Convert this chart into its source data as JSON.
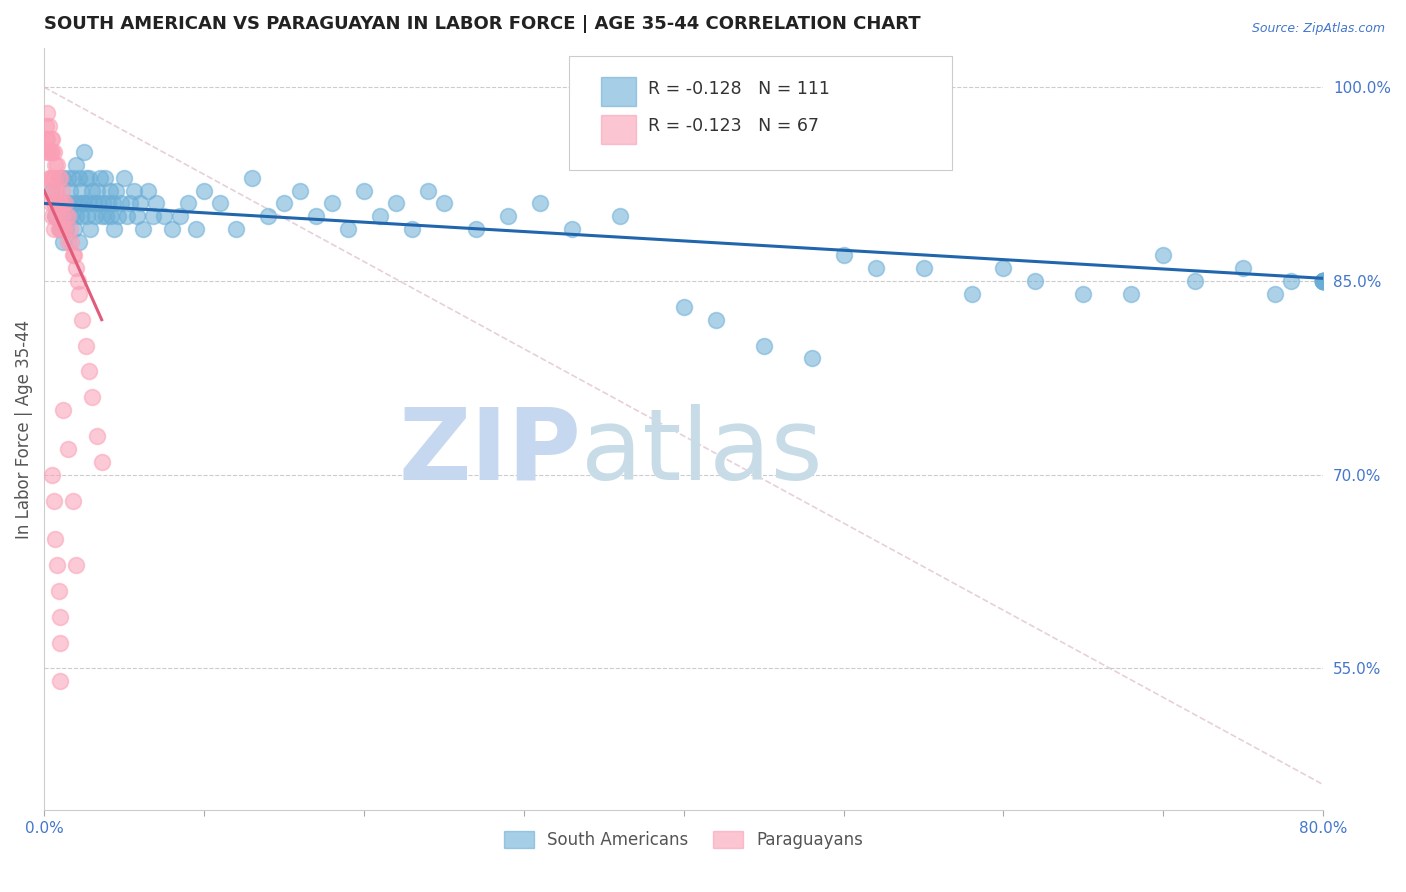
{
  "title": "SOUTH AMERICAN VS PARAGUAYAN IN LABOR FORCE | AGE 35-44 CORRELATION CHART",
  "source": "Source: ZipAtlas.com",
  "ylabel": "In Labor Force | Age 35-44",
  "xlim": [
    0.0,
    0.8
  ],
  "ylim": [
    0.44,
    1.03
  ],
  "xticks": [
    0.0,
    0.1,
    0.2,
    0.3,
    0.4,
    0.5,
    0.6,
    0.7,
    0.8
  ],
  "xticklabels": [
    "0.0%",
    "",
    "",
    "",
    "",
    "",
    "",
    "",
    "80.0%"
  ],
  "right_yticks": [
    1.0,
    0.85,
    0.7,
    0.55
  ],
  "right_yticklabels": [
    "100.0%",
    "85.0%",
    "70.0%",
    "55.0%"
  ],
  "legend_blue_r": "R = -0.128",
  "legend_blue_n": "N = 111",
  "legend_pink_r": "R = -0.123",
  "legend_pink_n": "N = 67",
  "legend_labels": [
    "South Americans",
    "Paraguayans"
  ],
  "blue_color": "#6baed6",
  "pink_color": "#fa9fb5",
  "trend_blue_color": "#2166ac",
  "trend_pink_color": "#e05c7a",
  "watermark1": "ZIP",
  "watermark2": "atlas",
  "watermark_color1": "#c6d8f0",
  "watermark_color2": "#c8dce8",
  "grid_color": "#cccccc",
  "axis_label_color": "#4477cc",
  "title_color": "#222222",
  "blue_scatter_x": [
    0.005,
    0.007,
    0.009,
    0.01,
    0.01,
    0.011,
    0.012,
    0.012,
    0.013,
    0.014,
    0.015,
    0.015,
    0.016,
    0.017,
    0.018,
    0.018,
    0.019,
    0.02,
    0.02,
    0.021,
    0.022,
    0.022,
    0.023,
    0.023,
    0.024,
    0.025,
    0.025,
    0.026,
    0.027,
    0.028,
    0.028,
    0.029,
    0.03,
    0.031,
    0.032,
    0.033,
    0.034,
    0.035,
    0.036,
    0.037,
    0.038,
    0.039,
    0.04,
    0.041,
    0.042,
    0.043,
    0.044,
    0.045,
    0.046,
    0.048,
    0.05,
    0.052,
    0.054,
    0.056,
    0.058,
    0.06,
    0.062,
    0.065,
    0.068,
    0.07,
    0.075,
    0.08,
    0.085,
    0.09,
    0.095,
    0.1,
    0.11,
    0.12,
    0.13,
    0.14,
    0.15,
    0.16,
    0.17,
    0.18,
    0.19,
    0.2,
    0.21,
    0.22,
    0.23,
    0.24,
    0.25,
    0.27,
    0.29,
    0.31,
    0.33,
    0.36,
    0.4,
    0.42,
    0.45,
    0.48,
    0.5,
    0.52,
    0.55,
    0.58,
    0.6,
    0.62,
    0.65,
    0.68,
    0.7,
    0.72,
    0.75,
    0.77,
    0.78,
    0.8,
    0.8,
    0.8,
    0.8,
    0.8,
    0.8,
    0.8,
    0.8
  ],
  "blue_scatter_y": [
    0.92,
    0.9,
    0.91,
    0.93,
    0.89,
    0.91,
    0.93,
    0.88,
    0.9,
    0.89,
    0.93,
    0.91,
    0.92,
    0.9,
    0.93,
    0.91,
    0.89,
    0.94,
    0.9,
    0.91,
    0.93,
    0.88,
    0.92,
    0.9,
    0.91,
    0.95,
    0.91,
    0.93,
    0.9,
    0.93,
    0.91,
    0.89,
    0.92,
    0.91,
    0.9,
    0.92,
    0.91,
    0.93,
    0.9,
    0.91,
    0.93,
    0.9,
    0.91,
    0.92,
    0.9,
    0.91,
    0.89,
    0.92,
    0.9,
    0.91,
    0.93,
    0.9,
    0.91,
    0.92,
    0.9,
    0.91,
    0.89,
    0.92,
    0.9,
    0.91,
    0.9,
    0.89,
    0.9,
    0.91,
    0.89,
    0.92,
    0.91,
    0.89,
    0.93,
    0.9,
    0.91,
    0.92,
    0.9,
    0.91,
    0.89,
    0.92,
    0.9,
    0.91,
    0.89,
    0.92,
    0.91,
    0.89,
    0.9,
    0.91,
    0.89,
    0.9,
    0.83,
    0.82,
    0.8,
    0.79,
    0.87,
    0.86,
    0.86,
    0.84,
    0.86,
    0.85,
    0.84,
    0.84,
    0.87,
    0.85,
    0.86,
    0.84,
    0.85,
    0.85,
    0.85,
    0.85,
    0.85,
    0.85,
    0.85,
    0.85,
    0.85
  ],
  "blue_trend_x": [
    0.0,
    0.8
  ],
  "blue_trend_y": [
    0.91,
    0.852
  ],
  "pink_scatter_x": [
    0.001,
    0.001,
    0.002,
    0.002,
    0.002,
    0.003,
    0.003,
    0.003,
    0.003,
    0.004,
    0.004,
    0.004,
    0.004,
    0.005,
    0.005,
    0.005,
    0.005,
    0.006,
    0.006,
    0.006,
    0.006,
    0.007,
    0.007,
    0.007,
    0.008,
    0.008,
    0.008,
    0.009,
    0.009,
    0.009,
    0.01,
    0.01,
    0.01,
    0.011,
    0.011,
    0.012,
    0.012,
    0.013,
    0.013,
    0.014,
    0.015,
    0.015,
    0.016,
    0.017,
    0.018,
    0.019,
    0.02,
    0.021,
    0.022,
    0.024,
    0.026,
    0.028,
    0.03,
    0.033,
    0.036,
    0.005,
    0.006,
    0.007,
    0.008,
    0.009,
    0.01,
    0.01,
    0.01,
    0.012,
    0.015,
    0.018,
    0.02
  ],
  "pink_scatter_y": [
    0.97,
    0.96,
    0.98,
    0.96,
    0.95,
    0.97,
    0.95,
    0.93,
    0.92,
    0.96,
    0.95,
    0.93,
    0.91,
    0.96,
    0.95,
    0.93,
    0.9,
    0.95,
    0.93,
    0.91,
    0.89,
    0.94,
    0.92,
    0.9,
    0.94,
    0.92,
    0.9,
    0.93,
    0.91,
    0.89,
    0.93,
    0.91,
    0.89,
    0.92,
    0.9,
    0.91,
    0.89,
    0.91,
    0.89,
    0.9,
    0.9,
    0.88,
    0.89,
    0.88,
    0.87,
    0.87,
    0.86,
    0.85,
    0.84,
    0.82,
    0.8,
    0.78,
    0.76,
    0.73,
    0.71,
    0.7,
    0.68,
    0.65,
    0.63,
    0.61,
    0.59,
    0.57,
    0.54,
    0.75,
    0.72,
    0.68,
    0.63
  ],
  "pink_trend_x": [
    0.0,
    0.036
  ],
  "pink_trend_y": [
    0.92,
    0.82
  ],
  "gray_trend_x": [
    0.0,
    0.8
  ],
  "gray_trend_y": [
    1.0,
    0.46
  ],
  "figsize": [
    14.06,
    8.92
  ],
  "dpi": 100
}
